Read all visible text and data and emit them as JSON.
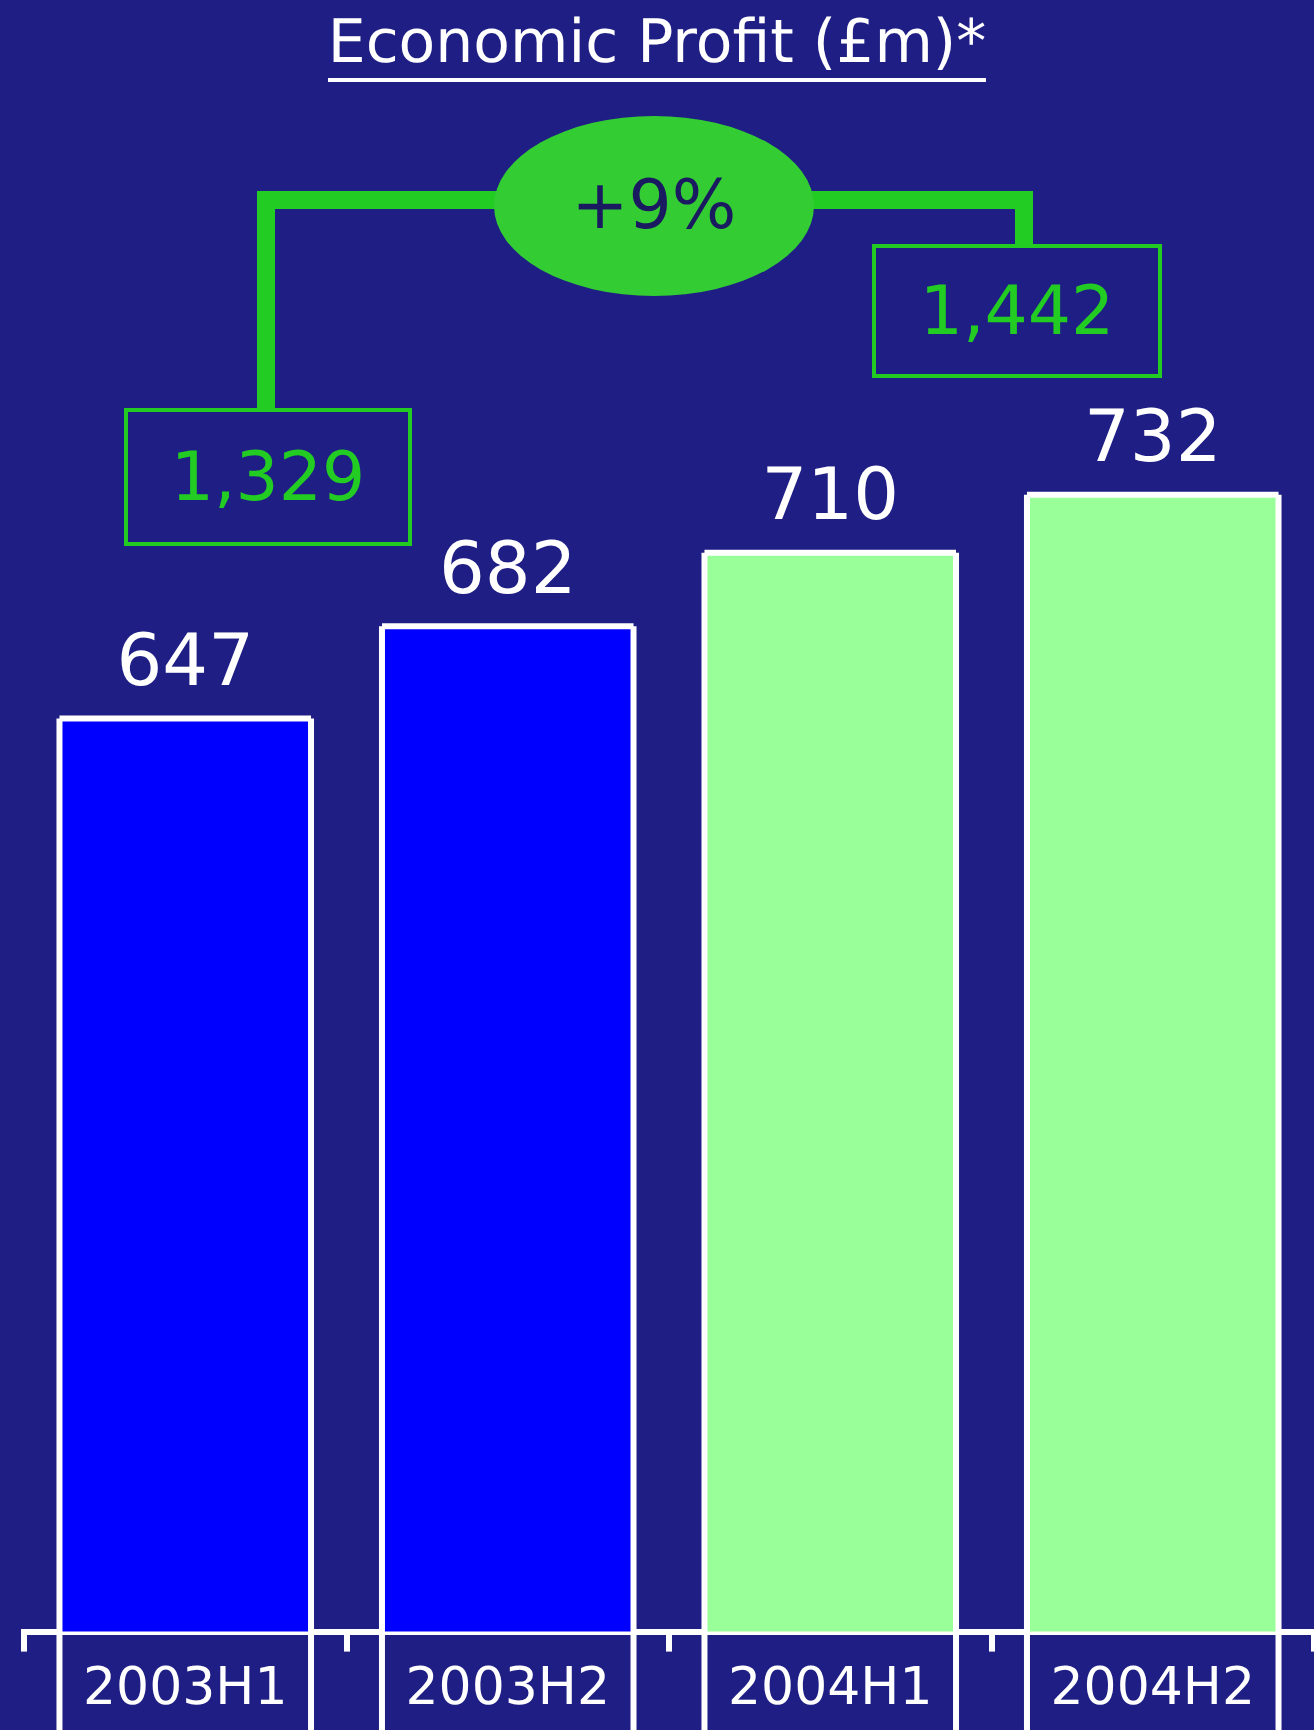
{
  "chart_data": {
    "type": "bar",
    "title": "Economic Profit (£m)*",
    "categories": [
      "2003H1",
      "2003H2",
      "2004H1",
      "2004H2"
    ],
    "values": [
      647,
      682,
      710,
      732
    ],
    "colors": [
      "#0000ff",
      "#0000ff",
      "#99ff99",
      "#99ff99"
    ],
    "ylim": [
      300,
      920
    ],
    "data_labels": true,
    "annotations": [
      "1,329",
      "+9%",
      "1,442"
    ]
  }
}
